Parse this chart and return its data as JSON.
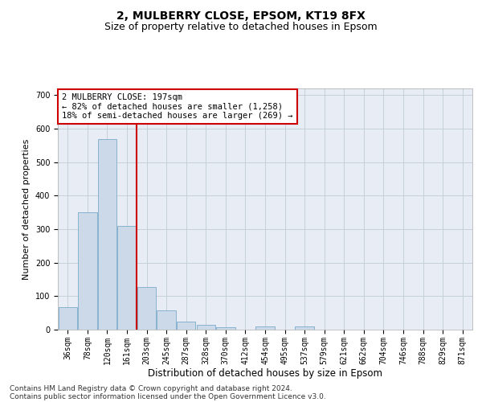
{
  "title1": "2, MULBERRY CLOSE, EPSOM, KT19 8FX",
  "title2": "Size of property relative to detached houses in Epsom",
  "xlabel": "Distribution of detached houses by size in Epsom",
  "ylabel": "Number of detached properties",
  "categories": [
    "36sqm",
    "78sqm",
    "120sqm",
    "161sqm",
    "203sqm",
    "245sqm",
    "287sqm",
    "328sqm",
    "370sqm",
    "412sqm",
    "454sqm",
    "495sqm",
    "537sqm",
    "579sqm",
    "621sqm",
    "662sqm",
    "704sqm",
    "746sqm",
    "788sqm",
    "829sqm",
    "871sqm"
  ],
  "values": [
    68,
    350,
    570,
    310,
    128,
    57,
    25,
    14,
    7,
    0,
    9,
    0,
    10,
    0,
    0,
    0,
    0,
    0,
    0,
    0,
    0
  ],
  "bar_color": "#ccd9e8",
  "bar_edge_color": "#7aaac8",
  "vline_color": "#cc0000",
  "vline_x": 3.5,
  "annotation_text": "2 MULBERRY CLOSE: 197sqm\n← 82% of detached houses are smaller (1,258)\n18% of semi-detached houses are larger (269) →",
  "annotation_box_color": "#cc0000",
  "ylim": [
    0,
    720
  ],
  "yticks": [
    0,
    100,
    200,
    300,
    400,
    500,
    600,
    700
  ],
  "grid_color": "#c0ccd8",
  "background_color": "#e8edf5",
  "footer1": "Contains HM Land Registry data © Crown copyright and database right 2024.",
  "footer2": "Contains public sector information licensed under the Open Government Licence v3.0.",
  "title1_fontsize": 10,
  "title2_fontsize": 9,
  "xlabel_fontsize": 8.5,
  "ylabel_fontsize": 8,
  "tick_fontsize": 7,
  "annotation_fontsize": 7.5,
  "footer_fontsize": 6.5
}
